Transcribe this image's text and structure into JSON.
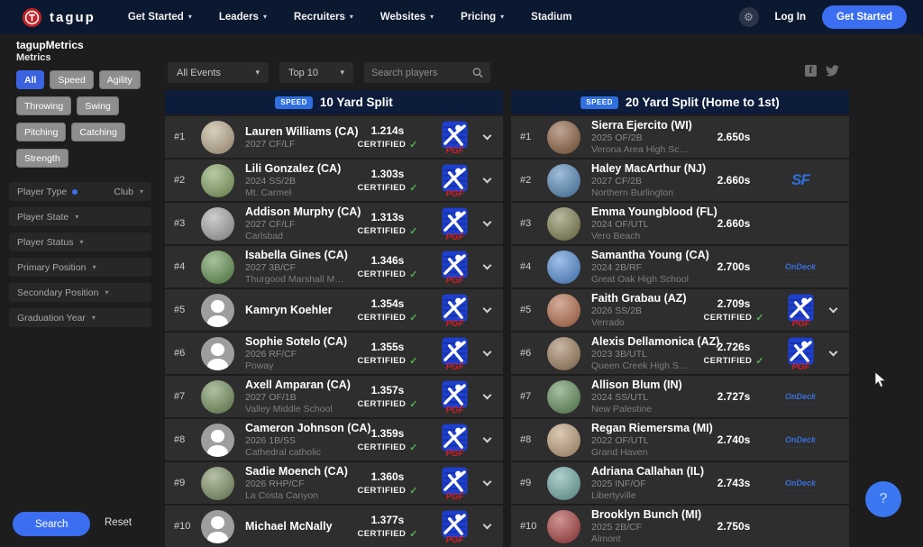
{
  "icons": {
    "caret_down": "▾",
    "gear": "⚙",
    "check": "✓",
    "facebook": "f"
  },
  "colors": {
    "accent_blue": "#3b6ef0",
    "badge_blue": "#2f6fe0",
    "navbar_bg": "#0b1930",
    "board_header_bg": "#0c1c3a",
    "row_bg": "#2e2e2e",
    "certified_green": "#53b04f"
  },
  "navbar": {
    "brand": "tagup",
    "menu": [
      {
        "label": "Get Started",
        "caret": true
      },
      {
        "label": "Leaders",
        "caret": true
      },
      {
        "label": "Recruiters",
        "caret": true
      },
      {
        "label": "Websites",
        "caret": true
      },
      {
        "label": "Pricing",
        "caret": true
      },
      {
        "label": "Stadium",
        "caret": false
      }
    ],
    "login_label": "Log In",
    "cta_label": "Get Started"
  },
  "page": {
    "title": "tagupMetrics"
  },
  "sidebar": {
    "metrics_label": "Metrics",
    "metric_buttons": [
      {
        "label": "All",
        "active": true
      },
      {
        "label": "Speed",
        "active": false
      },
      {
        "label": "Agility",
        "active": false
      },
      {
        "label": "Throwing",
        "active": false
      },
      {
        "label": "Swing",
        "active": false
      },
      {
        "label": "Pitching",
        "active": false
      },
      {
        "label": "Catching",
        "active": false
      },
      {
        "label": "Strength",
        "active": false
      }
    ],
    "filters": [
      {
        "label": "Player Type",
        "value": "Club",
        "dot": true
      },
      {
        "label": "Player State",
        "value": "",
        "dot": false
      },
      {
        "label": "Player Status",
        "value": "",
        "dot": false
      },
      {
        "label": "Primary Position",
        "value": "",
        "dot": false
      },
      {
        "label": "Secondary Position",
        "value": "",
        "dot": false
      },
      {
        "label": "Graduation Year",
        "value": "",
        "dot": false
      }
    ],
    "search_label": "Search",
    "reset_label": "Reset"
  },
  "toolbar": {
    "events_filter": "All Events",
    "top_filter": "Top 10",
    "search_placeholder": "Search players"
  },
  "help_label": "?",
  "logo_texts": {
    "pgf": "PGF",
    "sf": "SF",
    "ondeck": "OnDeck"
  },
  "boards": [
    {
      "badge": "SPEED",
      "title": "10 Yard Split",
      "rows": [
        {
          "rank": "#1",
          "name": "Lauren Williams (CA)",
          "meta": "2027 CF/LF",
          "school": "",
          "time": "1.214s",
          "certified": true,
          "logo": "pgf",
          "expand": true,
          "avatar": "photo",
          "avatar_color": "#b9a889"
        },
        {
          "rank": "#2",
          "name": "Lili Gonzalez (CA)",
          "meta": "2024 SS/2B",
          "school": "Mt. Carmel",
          "time": "1.303s",
          "certified": true,
          "logo": "pgf",
          "expand": true,
          "avatar": "photo",
          "avatar_color": "#7fa05c"
        },
        {
          "rank": "#3",
          "name": "Addison Murphy (CA)",
          "meta": "2027 CF/LF",
          "school": "Carlsbad",
          "time": "1.313s",
          "certified": true,
          "logo": "pgf",
          "expand": true,
          "avatar": "photo",
          "avatar_color": "#a3a3a3"
        },
        {
          "rank": "#4",
          "name": "Isabella Gines (CA)",
          "meta": "2027 3B/CF",
          "school": "Thurgood Marshall Middle School",
          "time": "1.346s",
          "certified": true,
          "logo": "pgf",
          "expand": true,
          "avatar": "photo",
          "avatar_color": "#5f8f4b"
        },
        {
          "rank": "#5",
          "name": "Kamryn Koehler",
          "meta": "",
          "school": "",
          "time": "1.354s",
          "certified": true,
          "logo": "pgf",
          "expand": true,
          "avatar": "placeholder",
          "avatar_color": "#9e9e9e"
        },
        {
          "rank": "#6",
          "name": "Sophie Sotelo (CA)",
          "meta": "2026 RF/CF",
          "school": "Poway",
          "time": "1.355s",
          "certified": true,
          "logo": "pgf",
          "expand": true,
          "avatar": "placeholder",
          "avatar_color": "#9e9e9e"
        },
        {
          "rank": "#7",
          "name": "Axell Amparan (CA)",
          "meta": "2027 OF/1B",
          "school": "Valley Middle School",
          "time": "1.357s",
          "certified": true,
          "logo": "pgf",
          "expand": true,
          "avatar": "photo",
          "avatar_color": "#6e8d57"
        },
        {
          "rank": "#8",
          "name": "Cameron Johnson (CA)",
          "meta": "2026 1B/SS",
          "school": "Cathedral catholic",
          "time": "1.359s",
          "certified": true,
          "logo": "pgf",
          "expand": true,
          "avatar": "placeholder",
          "avatar_color": "#9e9e9e"
        },
        {
          "rank": "#9",
          "name": "Sadie Moench (CA)",
          "meta": "2026 RHP/CF",
          "school": "La Costa Canyon",
          "time": "1.360s",
          "certified": true,
          "logo": "pgf",
          "expand": true,
          "avatar": "photo",
          "avatar_color": "#7b8e60"
        },
        {
          "rank": "#10",
          "name": "Michael McNally",
          "meta": "",
          "school": "",
          "time": "1.377s",
          "certified": true,
          "logo": "pgf",
          "expand": true,
          "avatar": "placeholder",
          "avatar_color": "#9e9e9e"
        }
      ]
    },
    {
      "badge": "SPEED",
      "title": "20 Yard Split (Home to 1st)",
      "rows": [
        {
          "rank": "#1",
          "name": "Sierra Ejercito (WI)",
          "meta": "2025 OF/2B",
          "school": "Verona Area High School",
          "time": "2.650s",
          "certified": false,
          "logo": "",
          "expand": false,
          "avatar": "photo",
          "avatar_color": "#8a5c3c"
        },
        {
          "rank": "#2",
          "name": "Haley MacArthur (NJ)",
          "meta": "2027 CF/2B",
          "school": "Northern Burlington",
          "time": "2.660s",
          "certified": false,
          "logo": "sf",
          "expand": false,
          "avatar": "photo",
          "avatar_color": "#4f86b8"
        },
        {
          "rank": "#3",
          "name": "Emma Youngblood (FL)",
          "meta": "2024 OF/UTL",
          "school": "Vero Beach",
          "time": "2.660s",
          "certified": false,
          "logo": "",
          "expand": false,
          "avatar": "photo",
          "avatar_color": "#7d7d4e"
        },
        {
          "rank": "#4",
          "name": "Samantha Young (CA)",
          "meta": "2024 2B/RF",
          "school": "Great Oak High School",
          "time": "2.700s",
          "certified": false,
          "logo": "ondeck",
          "expand": false,
          "avatar": "photo",
          "avatar_color": "#4f8bd6"
        },
        {
          "rank": "#5",
          "name": "Faith Grabau (AZ)",
          "meta": "2026 SS/2B",
          "school": "Verrado",
          "time": "2.709s",
          "certified": true,
          "logo": "pgf",
          "expand": true,
          "avatar": "photo",
          "avatar_color": "#b56a48"
        },
        {
          "rank": "#6",
          "name": "Alexis Dellamonica (AZ)",
          "meta": "2023 3B/UTL",
          "school": "Queen Creek High School",
          "time": "2.726s",
          "certified": true,
          "logo": "pgf",
          "expand": true,
          "avatar": "photo",
          "avatar_color": "#9b7b59"
        },
        {
          "rank": "#7",
          "name": "Allison Blum (IN)",
          "meta": "2024 SS/UTL",
          "school": "New Palestine",
          "time": "2.727s",
          "certified": false,
          "logo": "ondeck",
          "expand": false,
          "avatar": "photo",
          "avatar_color": "#5d8a56"
        },
        {
          "rank": "#8",
          "name": "Regan Riemersma (MI)",
          "meta": "2022 OF/UTL",
          "school": "Grand Haven",
          "time": "2.740s",
          "certified": false,
          "logo": "ondeck",
          "expand": false,
          "avatar": "photo",
          "avatar_color": "#bd9c77"
        },
        {
          "rank": "#9",
          "name": "Adriana Callahan (IL)",
          "meta": "2025 INF/OF",
          "school": "Libertyville",
          "time": "2.743s",
          "certified": false,
          "logo": "ondeck",
          "expand": false,
          "avatar": "photo",
          "avatar_color": "#6ca8a4"
        },
        {
          "rank": "#10",
          "name": "Brooklyn Bunch (MI)",
          "meta": "2025 2B/CF",
          "school": "Almont",
          "time": "2.750s",
          "certified": false,
          "logo": "",
          "expand": false,
          "avatar": "photo",
          "avatar_color": "#a83a3a"
        }
      ]
    }
  ]
}
